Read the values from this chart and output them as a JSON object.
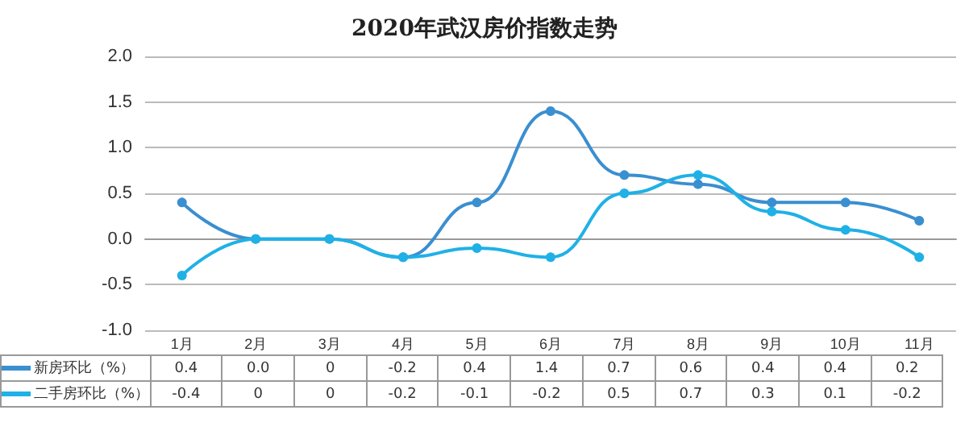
{
  "chart_data": {
    "type": "line",
    "title": "2020年武汉房价指数走势",
    "categories": [
      "1月",
      "2月",
      "3月",
      "4月",
      "5月",
      "6月",
      "7月",
      "8月",
      "9月",
      "10月",
      "11月"
    ],
    "series": [
      {
        "name": "新房环比（%）",
        "color": "#3a8fd0",
        "values": [
          0.4,
          0.0,
          0,
          -0.2,
          0.4,
          1.4,
          0.7,
          0.6,
          0.4,
          0.4,
          0.2
        ],
        "value_labels": [
          "0.4",
          "0.0",
          "0",
          "-0.2",
          "0.4",
          "1.4",
          "0.7",
          "0.6",
          "0.4",
          "0.4",
          "0.2"
        ]
      },
      {
        "name": "二手房环比（%）",
        "color": "#1fb1e6",
        "values": [
          -0.4,
          0,
          0,
          -0.2,
          -0.1,
          -0.2,
          0.5,
          0.7,
          0.3,
          0.1,
          -0.2
        ],
        "value_labels": [
          "-0.4",
          "0",
          "0",
          "-0.2",
          "-0.1",
          "-0.2",
          "0.5",
          "0.7",
          "0.3",
          "0.1",
          "-0.2"
        ]
      }
    ],
    "ylim": [
      -1.0,
      2.0
    ],
    "yticks": [
      {
        "value": -1.0,
        "label": "-1.0"
      },
      {
        "value": -0.5,
        "label": "-0.5"
      },
      {
        "value": 0,
        "label": "0.0"
      },
      {
        "value": 0.5,
        "label": "0.5"
      },
      {
        "value": 1.0,
        "label": "1.0"
      },
      {
        "value": 1.5,
        "label": "1.5"
      },
      {
        "value": 2.0,
        "label": "2.0"
      }
    ],
    "grid": "y",
    "legend": "bottom",
    "marker": "circle",
    "line_style": "solid"
  }
}
